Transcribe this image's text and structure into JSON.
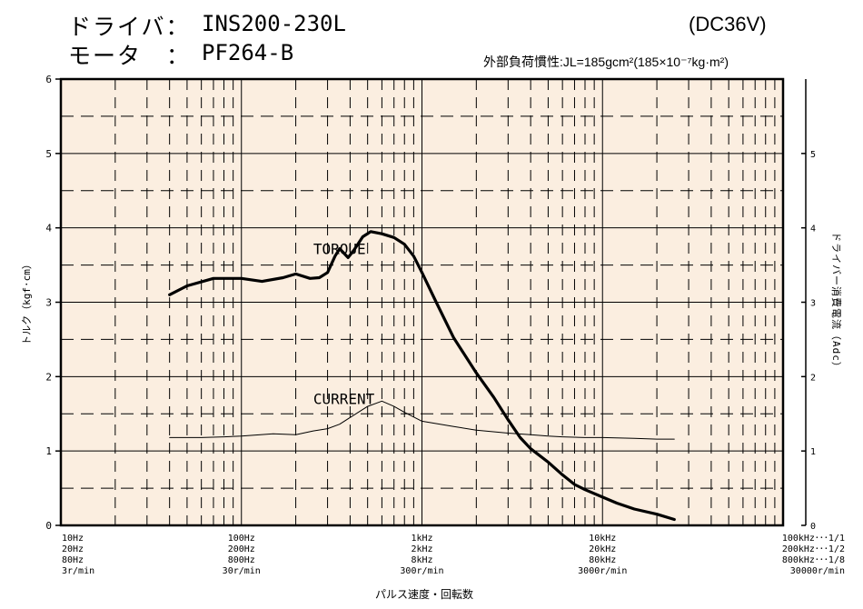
{
  "header": {
    "driver_label": "ドライバ：",
    "driver_value": "INS200-230L",
    "motor_label": "モータ　：",
    "motor_value": "PF264-B",
    "voltage": "(DC36V)",
    "load_info": "外部負荷慣性:JL=185gcm²(185×10⁻⁷kg·m²)"
  },
  "colors": {
    "plot_background": "#fbeee0",
    "grid": "#000000",
    "torque_curve": "#000000",
    "current_curve": "#000000"
  },
  "chart_data": {
    "type": "line",
    "title": "",
    "xlabel": "パルス速度・回転数",
    "ylabel": "トルク（kgf·cm）",
    "y2label": "ドライバー消費電流（Adc）",
    "xscale": "log",
    "xlim": [
      10,
      100000
    ],
    "ylim": [
      0,
      6
    ],
    "y2lim": [
      0,
      6
    ],
    "y_ticks": [
      "0",
      "1",
      "2",
      "3",
      "4",
      "5",
      "6"
    ],
    "y2_ticks": [
      "0",
      "1",
      "2",
      "3",
      "4",
      "5"
    ],
    "x_tick_groups": [
      {
        "x": 10,
        "lines": [
          "10Hz",
          "20Hz",
          "80Hz",
          "3r/min"
        ]
      },
      {
        "x": 100,
        "lines": [
          "100Hz",
          "200Hz",
          "800Hz",
          "30r/min"
        ]
      },
      {
        "x": 1000,
        "lines": [
          "1kHz",
          "2kHz",
          "8kHz",
          "300r/min"
        ]
      },
      {
        "x": 10000,
        "lines": [
          "10kHz",
          "20kHz",
          "80kHz",
          "3000r/min"
        ]
      },
      {
        "x": 100000,
        "lines": [
          "100kHz･･･1/1",
          "200kHz･･･1/2",
          "800kHz･･･1/8",
          "30000r/min"
        ]
      }
    ],
    "series": [
      {
        "name": "TORQUE",
        "axis": "left",
        "points": [
          [
            40,
            3.1
          ],
          [
            50,
            3.22
          ],
          [
            70,
            3.32
          ],
          [
            100,
            3.32
          ],
          [
            130,
            3.28
          ],
          [
            170,
            3.33
          ],
          [
            200,
            3.38
          ],
          [
            240,
            3.32
          ],
          [
            270,
            3.33
          ],
          [
            300,
            3.4
          ],
          [
            330,
            3.62
          ],
          [
            350,
            3.72
          ],
          [
            390,
            3.6
          ],
          [
            420,
            3.7
          ],
          [
            470,
            3.88
          ],
          [
            520,
            3.95
          ],
          [
            600,
            3.92
          ],
          [
            700,
            3.87
          ],
          [
            800,
            3.78
          ],
          [
            900,
            3.62
          ],
          [
            1000,
            3.4
          ],
          [
            1200,
            3.0
          ],
          [
            1500,
            2.52
          ],
          [
            2000,
            2.05
          ],
          [
            2500,
            1.72
          ],
          [
            3000,
            1.42
          ],
          [
            3500,
            1.18
          ],
          [
            4000,
            1.03
          ],
          [
            5000,
            0.85
          ],
          [
            6000,
            0.68
          ],
          [
            7000,
            0.55
          ],
          [
            8000,
            0.48
          ],
          [
            10000,
            0.38
          ],
          [
            12000,
            0.3
          ],
          [
            15000,
            0.22
          ],
          [
            20000,
            0.15
          ],
          [
            25000,
            0.08
          ]
        ]
      },
      {
        "name": "CURRENT",
        "axis": "right",
        "points": [
          [
            40,
            1.18
          ],
          [
            60,
            1.18
          ],
          [
            80,
            1.19
          ],
          [
            100,
            1.2
          ],
          [
            150,
            1.23
          ],
          [
            200,
            1.22
          ],
          [
            250,
            1.27
          ],
          [
            300,
            1.3
          ],
          [
            350,
            1.36
          ],
          [
            400,
            1.45
          ],
          [
            500,
            1.6
          ],
          [
            600,
            1.67
          ],
          [
            700,
            1.6
          ],
          [
            800,
            1.52
          ],
          [
            1000,
            1.4
          ],
          [
            1500,
            1.33
          ],
          [
            2000,
            1.28
          ],
          [
            3000,
            1.24
          ],
          [
            4000,
            1.22
          ],
          [
            5000,
            1.2
          ],
          [
            6000,
            1.19
          ],
          [
            8000,
            1.18
          ],
          [
            10000,
            1.18
          ],
          [
            15000,
            1.17
          ],
          [
            20000,
            1.16
          ],
          [
            25000,
            1.16
          ]
        ],
        "annotation": "CURRENT"
      }
    ],
    "annotations": [
      {
        "text": "TORQUE",
        "x": 250,
        "y": 3.65
      },
      {
        "text": "CURRENT",
        "x": 250,
        "y": 1.63
      }
    ],
    "grid": true
  }
}
